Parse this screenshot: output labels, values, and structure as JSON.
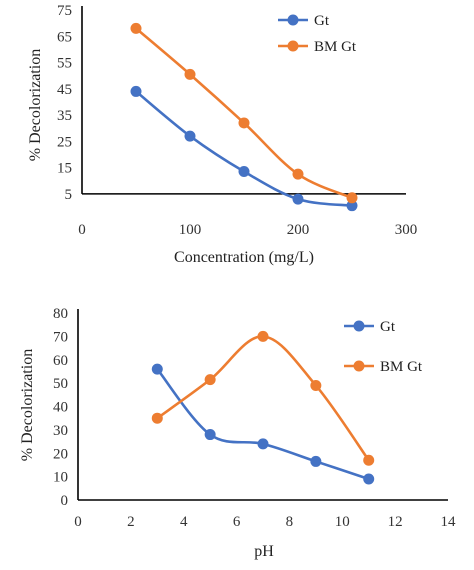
{
  "chart_data": [
    {
      "type": "line",
      "smooth": true,
      "xlabel": "Concentration (mg/L)",
      "ylabel": "% Decolorization",
      "xlim": [
        0,
        300
      ],
      "ylim": [
        0,
        75
      ],
      "xticks": [
        0,
        100,
        200,
        300
      ],
      "yticks": [
        5,
        15,
        25,
        35,
        45,
        55,
        65,
        75
      ],
      "legend_position": "top-right",
      "series": [
        {
          "name": "Gt",
          "color": "#4472c4",
          "x": [
            50,
            100,
            150,
            200,
            250
          ],
          "y": [
            44,
            27,
            13.5,
            3,
            0.5
          ]
        },
        {
          "name": "BM Gt",
          "color": "#ed7d31",
          "x": [
            50,
            100,
            150,
            200,
            250
          ],
          "y": [
            68,
            50.5,
            32,
            12.5,
            3.5
          ]
        }
      ]
    },
    {
      "type": "line",
      "smooth": true,
      "xlabel": "pH",
      "ylabel": "% Decolorization",
      "xlim": [
        0,
        14
      ],
      "ylim": [
        0,
        80
      ],
      "xticks": [
        0,
        2,
        4,
        6,
        8,
        10,
        12,
        14
      ],
      "yticks": [
        0,
        10,
        20,
        30,
        40,
        50,
        60,
        70,
        80
      ],
      "legend_position": "right",
      "series": [
        {
          "name": "Gt",
          "color": "#4472c4",
          "x": [
            3,
            5,
            7,
            9,
            11
          ],
          "y": [
            56,
            28,
            24,
            16.5,
            9
          ]
        },
        {
          "name": "BM Gt",
          "color": "#ed7d31",
          "x": [
            3,
            5,
            7,
            9,
            11
          ],
          "y": [
            35,
            51.5,
            70,
            49,
            17
          ]
        }
      ]
    }
  ]
}
